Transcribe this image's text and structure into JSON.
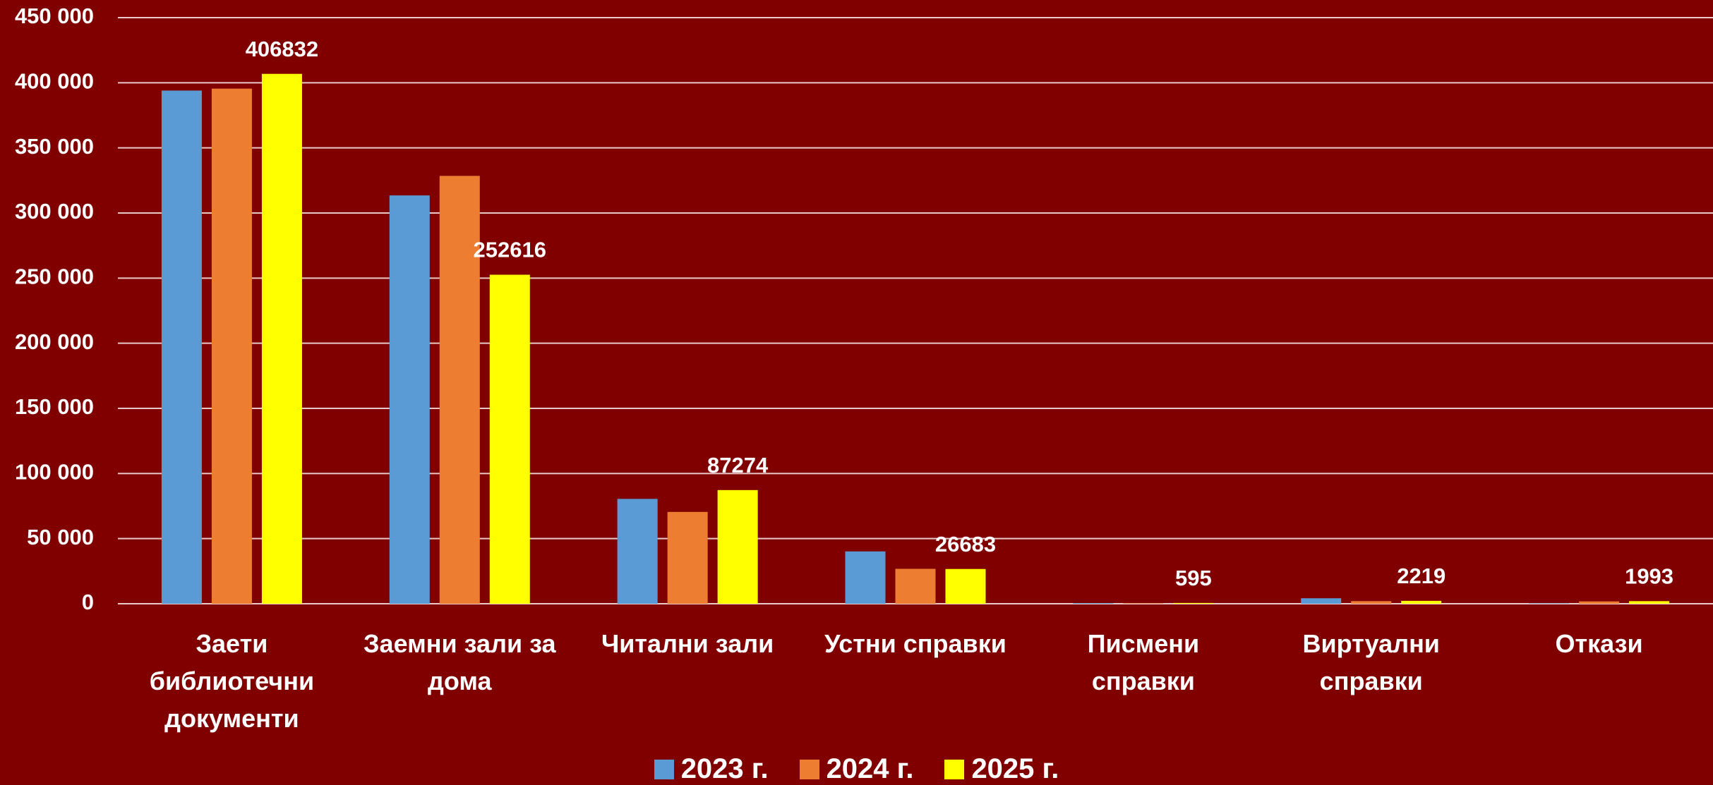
{
  "chart_data": {
    "type": "bar",
    "categories": [
      "Заети библиотечни документи",
      "Заемни зали за дома",
      "Читални зали",
      "Устни справки",
      "Писмени справки",
      "Виртуални справки",
      "Откази"
    ],
    "series": [
      {
        "name": "2023 г.",
        "color": "#5b9bd5",
        "values": [
          394000,
          313500,
          80500,
          40200,
          500,
          4200,
          300
        ]
      },
      {
        "name": "2024 г.",
        "color": "#ed7d31",
        "values": [
          395500,
          328500,
          70500,
          26800,
          400,
          2000,
          1800
        ]
      },
      {
        "name": "2025 г.",
        "color": "#ffff00",
        "values": [
          406832,
          252616,
          87274,
          26683,
          595,
          2219,
          1993
        ],
        "data_labels": true
      }
    ],
    "ylim": [
      0,
      450000
    ],
    "yticks": [
      {
        "value": 0,
        "label": "0"
      },
      {
        "value": 50000,
        "label": "50 000"
      },
      {
        "value": 100000,
        "label": "100 000"
      },
      {
        "value": 150000,
        "label": "150 000"
      },
      {
        "value": 200000,
        "label": "200 000"
      },
      {
        "value": 250000,
        "label": "250 000"
      },
      {
        "value": 300000,
        "label": "300 000"
      },
      {
        "value": 350000,
        "label": "350 000"
      },
      {
        "value": 400000,
        "label": "400 000"
      },
      {
        "value": 450000,
        "label": "450 000"
      }
    ],
    "grid": true,
    "legend": "bottom"
  }
}
